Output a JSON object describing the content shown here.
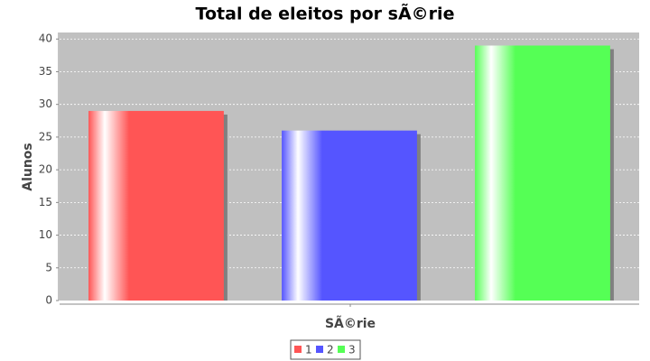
{
  "chart_data": {
    "type": "bar",
    "title": "Total de eleitos por sÃ©rie",
    "x_label": "SÃ©rie",
    "y_label": "Alunos",
    "categories": [
      null
    ],
    "series": [
      {
        "name": "1",
        "color": "#ff5555",
        "values": [
          29
        ]
      },
      {
        "name": "2",
        "color": "#5555ff",
        "values": [
          26
        ]
      },
      {
        "name": "3",
        "color": "#55ff55",
        "values": [
          39
        ]
      }
    ],
    "ylim": [
      0,
      41
    ],
    "yticks": [
      0,
      5,
      10,
      15,
      20,
      25,
      30,
      35,
      40
    ],
    "grid": true,
    "legend": "bottom"
  }
}
